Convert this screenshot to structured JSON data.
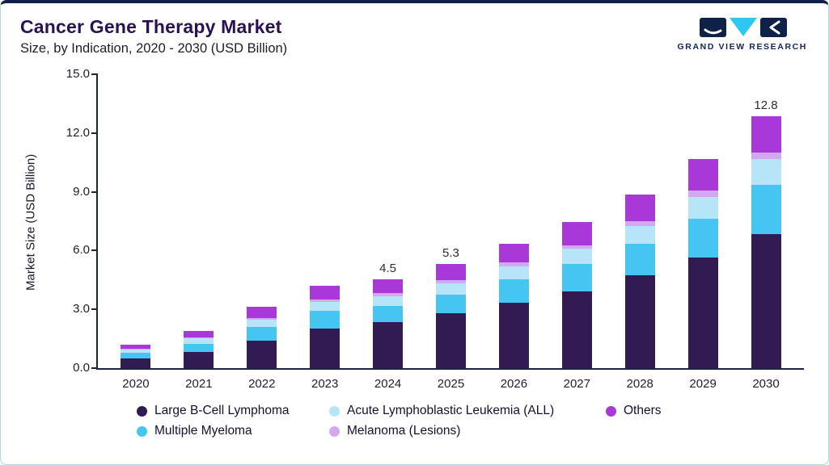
{
  "header": {
    "title": "Cancer Gene Therapy Market",
    "subtitle": "Size, by Indication, 2020 - 2030 (USD Billion)",
    "logo_text": "GRAND VIEW RESEARCH"
  },
  "chart_data": {
    "type": "bar",
    "stacked": true,
    "title": "Cancer Gene Therapy Market Size, by Indication, 2020 - 2030 (USD Billion)",
    "xlabel": "",
    "ylabel": "Market Size (USD Billion)",
    "ylim": [
      0,
      15
    ],
    "yticks": [
      "0.0",
      "3.0",
      "6.0",
      "9.0",
      "12.0",
      "15.0"
    ],
    "grid": false,
    "legend_position": "bottom",
    "categories": [
      "2020",
      "2021",
      "2022",
      "2023",
      "2024",
      "2025",
      "2026",
      "2027",
      "2028",
      "2029",
      "2030"
    ],
    "series": [
      {
        "name": "Large B-Cell Lymphoma",
        "color": "#321a52",
        "values": [
          0.5,
          0.8,
          1.4,
          2.0,
          2.35,
          2.8,
          3.3,
          3.9,
          4.7,
          5.6,
          6.8
        ]
      },
      {
        "name": "Multiple Myeloma",
        "color": "#45c6f2",
        "values": [
          0.3,
          0.45,
          0.7,
          0.9,
          0.8,
          0.95,
          1.2,
          1.4,
          1.6,
          2.0,
          2.5
        ]
      },
      {
        "name": "Acute Lymphoblastic Leukemia (ALL)",
        "color": "#b6e4f8",
        "values": [
          0.15,
          0.25,
          0.35,
          0.45,
          0.5,
          0.55,
          0.65,
          0.75,
          0.9,
          1.1,
          1.3
        ]
      },
      {
        "name": "Melanoma (Lesions)",
        "color": "#d2a8f0",
        "values": [
          0.05,
          0.07,
          0.1,
          0.12,
          0.15,
          0.15,
          0.2,
          0.2,
          0.25,
          0.3,
          0.35
        ]
      },
      {
        "name": "Others",
        "color": "#a838d8",
        "values": [
          0.2,
          0.33,
          0.55,
          0.73,
          0.7,
          0.85,
          0.95,
          1.15,
          1.35,
          1.6,
          1.85
        ]
      }
    ],
    "bar_labels": {
      "2024": "4.5",
      "2025": "5.3",
      "2030": "12.8"
    },
    "legend_rows": [
      [
        "Large B-Cell Lymphoma",
        "Acute Lymphoblastic Leukemia (ALL)",
        "Others"
      ],
      [
        "Multiple Myeloma",
        "Melanoma (Lesions)"
      ]
    ]
  }
}
